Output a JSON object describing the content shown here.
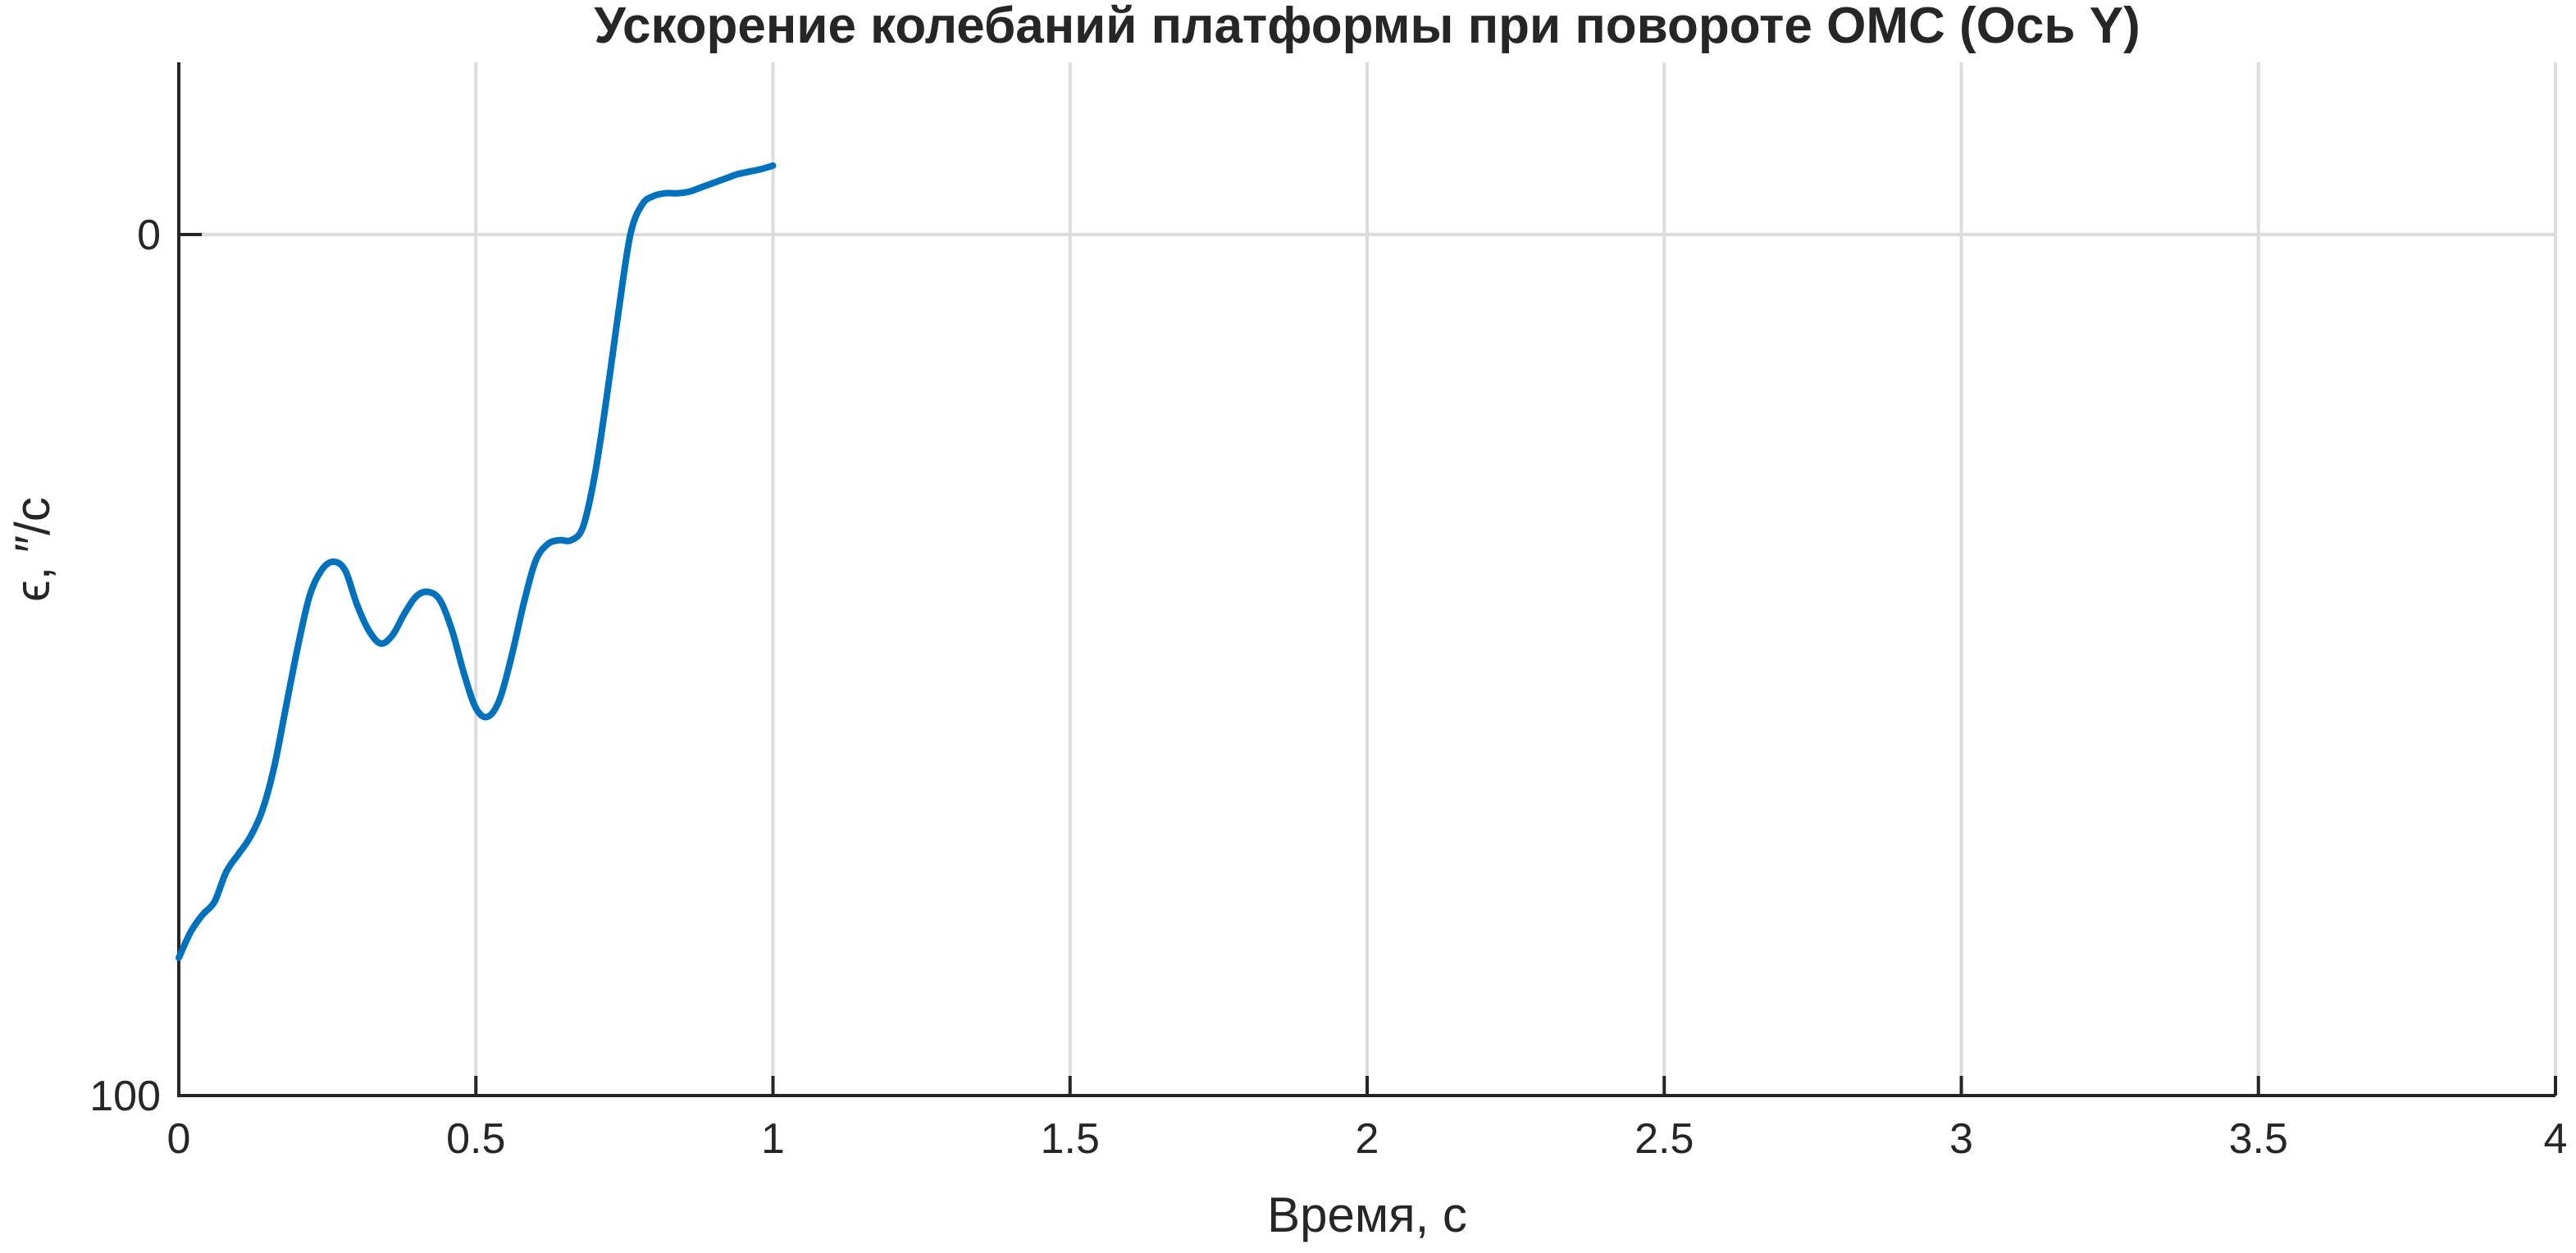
{
  "chart_data": {
    "type": "line",
    "title": "Ускорение колебаний платформы при повороте ОМС (Ось Y)",
    "xlabel": "Время, с",
    "ylabel": "ϵ, ″/с",
    "xlim": [
      0,
      4
    ],
    "ylim": [
      100,
      -20
    ],
    "y_direction": "reversed",
    "grid": true,
    "x_ticks": [
      0,
      0.5,
      1,
      1.5,
      2,
      2.5,
      3,
      3.5,
      4
    ],
    "x_tick_labels": [
      "0",
      "0.5",
      "1",
      "1.5",
      "2",
      "2.5",
      "3",
      "3.5",
      "4"
    ],
    "y_ticks": [
      0,
      100
    ],
    "y_tick_labels": [
      "0",
      "100"
    ],
    "series": [
      {
        "color": "#0072BD",
        "x": [
          0,
          0.02,
          0.04,
          0.06,
          0.08,
          0.1,
          0.12,
          0.14,
          0.16,
          0.18,
          0.2,
          0.22,
          0.24,
          0.26,
          0.28,
          0.3,
          0.32,
          0.34,
          0.36,
          0.38,
          0.4,
          0.42,
          0.44,
          0.46,
          0.48,
          0.5,
          0.52,
          0.54,
          0.56,
          0.58,
          0.6,
          0.62,
          0.64,
          0.66,
          0.68,
          0.7,
          0.72,
          0.74,
          0.76,
          0.78,
          0.8,
          0.82,
          0.84,
          0.86,
          0.88,
          0.9,
          0.92,
          0.94,
          0.96,
          0.98,
          1.0
        ],
        "y": [
          84,
          81,
          79,
          77.5,
          74,
          72,
          70,
          67,
          62,
          55,
          48,
          42,
          39,
          38,
          39,
          43,
          46,
          47.5,
          46.5,
          44,
          42,
          41.5,
          42.5,
          46,
          51,
          55,
          56,
          54,
          49,
          43,
          38,
          36,
          35.5,
          35.5,
          34,
          28,
          19,
          9,
          0,
          -3.5,
          -4.5,
          -4.8,
          -4.8,
          -5,
          -5.5,
          -6,
          -6.5,
          -7,
          -7.3,
          -7.6,
          -8
        ]
      }
    ]
  }
}
